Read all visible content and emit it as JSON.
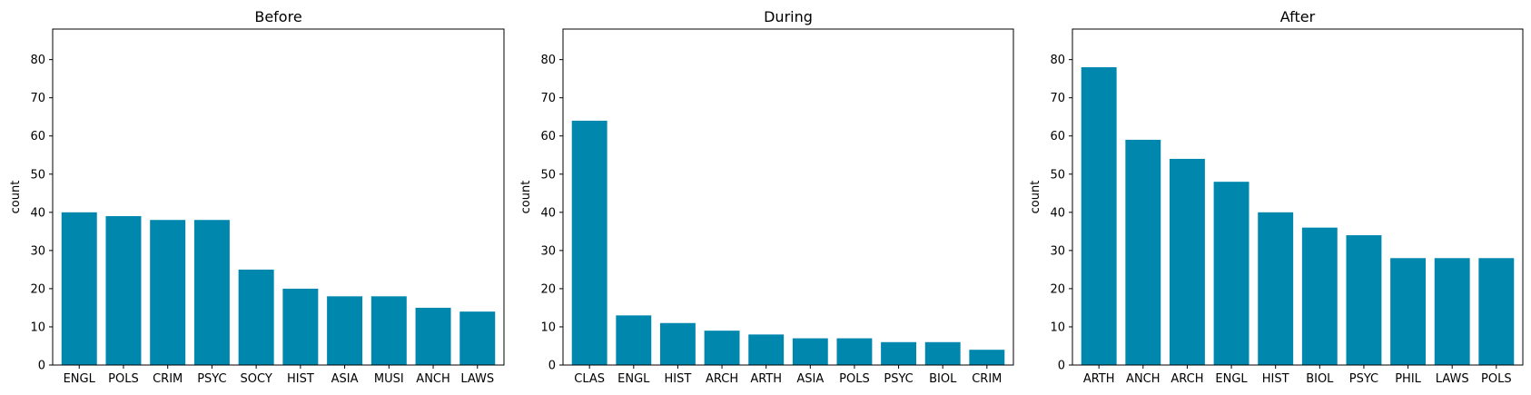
{
  "chart_data": [
    {
      "type": "bar",
      "title": "Before",
      "ylabel": "count",
      "xlabel": "",
      "ylim": [
        0,
        88
      ],
      "yticks": [
        0,
        10,
        20,
        30,
        40,
        50,
        60,
        70,
        80
      ],
      "categories": [
        "ENGL",
        "POLS",
        "CRIM",
        "PSYC",
        "SOCY",
        "HIST",
        "ASIA",
        "MUSI",
        "ANCH",
        "LAWS"
      ],
      "values": [
        40,
        39,
        38,
        38,
        25,
        20,
        18,
        18,
        15,
        14
      ],
      "color": "#0087ae",
      "grid": false
    },
    {
      "type": "bar",
      "title": "During",
      "ylabel": "count",
      "xlabel": "",
      "ylim": [
        0,
        88
      ],
      "yticks": [
        0,
        10,
        20,
        30,
        40,
        50,
        60,
        70,
        80
      ],
      "categories": [
        "CLAS",
        "ENGL",
        "HIST",
        "ARCH",
        "ARTH",
        "ASIA",
        "POLS",
        "PSYC",
        "BIOL",
        "CRIM"
      ],
      "values": [
        64,
        13,
        11,
        9,
        8,
        7,
        7,
        6,
        6,
        4
      ],
      "color": "#0087ae",
      "grid": false
    },
    {
      "type": "bar",
      "title": "After",
      "ylabel": "count",
      "xlabel": "",
      "ylim": [
        0,
        88
      ],
      "yticks": [
        0,
        10,
        20,
        30,
        40,
        50,
        60,
        70,
        80
      ],
      "categories": [
        "ARTH",
        "ANCH",
        "ARCH",
        "ENGL",
        "HIST",
        "BIOL",
        "PSYC",
        "PHIL",
        "LAWS",
        "POLS"
      ],
      "values": [
        78,
        59,
        54,
        48,
        40,
        36,
        34,
        28,
        28,
        28
      ],
      "color": "#0087ae",
      "grid": false
    }
  ]
}
